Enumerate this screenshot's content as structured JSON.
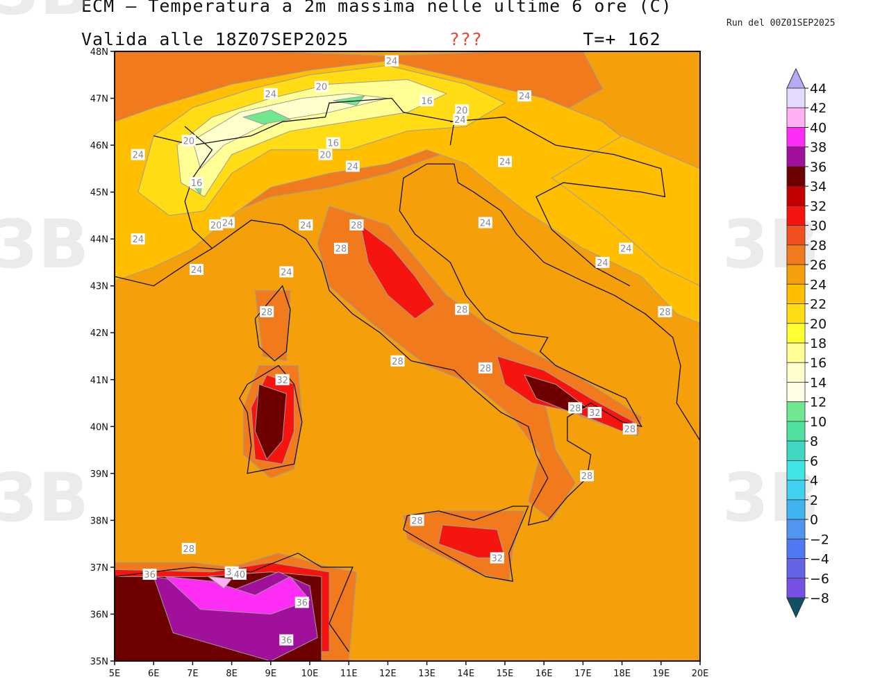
{
  "header": {
    "title": "ECM — Temperatura a 2m massima nelle ultime 6 ore (C)",
    "valid_prefix": "Valida alle 18Z07SEP2025",
    "warning": "???",
    "lead": "T=+ 162",
    "run": "Run del 00Z01SEP2025"
  },
  "map": {
    "lon_min": 5,
    "lon_max": 20,
    "lat_min": 35,
    "lat_max": 48,
    "lon_labels": [
      "5E",
      "6E",
      "7E",
      "8E",
      "9E",
      "10E",
      "11E",
      "12E",
      "13E",
      "14E",
      "15E",
      "16E",
      "17E",
      "18E",
      "19E",
      "20E"
    ],
    "lat_labels": [
      "35N",
      "36N",
      "37N",
      "38N",
      "39N",
      "40N",
      "41N",
      "42N",
      "43N",
      "44N",
      "45N",
      "46N",
      "47N",
      "48N"
    ],
    "contour_labels": [
      {
        "text": "24",
        "lon": 12.1,
        "lat": 47.8
      },
      {
        "text": "24",
        "lon": 9.0,
        "lat": 47.1
      },
      {
        "text": "20",
        "lon": 10.3,
        "lat": 47.25
      },
      {
        "text": "16",
        "lon": 13.0,
        "lat": 46.95
      },
      {
        "text": "24",
        "lon": 15.5,
        "lat": 47.05
      },
      {
        "text": "20",
        "lon": 13.9,
        "lat": 46.75
      },
      {
        "text": "24",
        "lon": 13.85,
        "lat": 46.55
      },
      {
        "text": "20",
        "lon": 6.9,
        "lat": 46.1
      },
      {
        "text": "16",
        "lon": 10.6,
        "lat": 46.05
      },
      {
        "text": "20",
        "lon": 10.4,
        "lat": 45.8
      },
      {
        "text": "24",
        "lon": 5.6,
        "lat": 45.8
      },
      {
        "text": "24",
        "lon": 11.1,
        "lat": 45.55
      },
      {
        "text": "24",
        "lon": 15.0,
        "lat": 45.65
      },
      {
        "text": "16",
        "lon": 7.1,
        "lat": 45.2
      },
      {
        "text": "20",
        "lon": 7.6,
        "lat": 44.3
      },
      {
        "text": "24",
        "lon": 7.9,
        "lat": 44.35
      },
      {
        "text": "24",
        "lon": 9.9,
        "lat": 44.3
      },
      {
        "text": "28",
        "lon": 11.2,
        "lat": 44.3
      },
      {
        "text": "24",
        "lon": 14.5,
        "lat": 44.35
      },
      {
        "text": "24",
        "lon": 5.6,
        "lat": 44.0
      },
      {
        "text": "28",
        "lon": 10.8,
        "lat": 43.8
      },
      {
        "text": "24",
        "lon": 18.1,
        "lat": 43.8
      },
      {
        "text": "24",
        "lon": 17.5,
        "lat": 43.5
      },
      {
        "text": "24",
        "lon": 7.1,
        "lat": 43.35
      },
      {
        "text": "24",
        "lon": 9.4,
        "lat": 43.3
      },
      {
        "text": "28",
        "lon": 13.9,
        "lat": 42.5
      },
      {
        "text": "28",
        "lon": 19.1,
        "lat": 42.45
      },
      {
        "text": "28",
        "lon": 8.9,
        "lat": 42.45
      },
      {
        "text": "28",
        "lon": 12.25,
        "lat": 41.4
      },
      {
        "text": "28",
        "lon": 14.5,
        "lat": 41.25
      },
      {
        "text": "32",
        "lon": 9.3,
        "lat": 41.0
      },
      {
        "text": "28",
        "lon": 16.8,
        "lat": 40.4
      },
      {
        "text": "32",
        "lon": 17.3,
        "lat": 40.3
      },
      {
        "text": "28",
        "lon": 18.2,
        "lat": 39.95
      },
      {
        "text": "28",
        "lon": 17.1,
        "lat": 38.95
      },
      {
        "text": "28",
        "lon": 12.75,
        "lat": 38.0
      },
      {
        "text": "32",
        "lon": 14.8,
        "lat": 37.2
      },
      {
        "text": "28",
        "lon": 6.9,
        "lat": 37.4
      },
      {
        "text": "36",
        "lon": 5.9,
        "lat": 36.85
      },
      {
        "text": "32",
        "lon": 8.0,
        "lat": 36.9
      },
      {
        "text": "40",
        "lon": 8.2,
        "lat": 36.85
      },
      {
        "text": "36",
        "lon": 9.8,
        "lat": 36.25
      },
      {
        "text": "36",
        "lon": 9.4,
        "lat": 35.45
      }
    ],
    "watermarks": [
      "3B",
      "3B",
      "3B",
      "3B",
      "3B",
      "3B",
      "3B"
    ]
  },
  "colorbar": {
    "levels": [
      44,
      42,
      40,
      38,
      36,
      34,
      32,
      30,
      28,
      26,
      24,
      22,
      20,
      18,
      16,
      14,
      12,
      10,
      8,
      6,
      4,
      2,
      0,
      -2,
      -4,
      -6,
      -8
    ],
    "labels": [
      "44",
      "42",
      "40",
      "38",
      "36",
      "34",
      "32",
      "30",
      "28",
      "26",
      "24",
      "22",
      "20",
      "18",
      "16",
      "14",
      "12",
      "10",
      "8",
      "6",
      "4",
      "2",
      "0",
      "−2",
      "−4",
      "−6",
      "−8"
    ],
    "colors": [
      "#e4d9ff",
      "#ffb0f5",
      "#ff2cf5",
      "#a0109a",
      "#6e0000",
      "#c40000",
      "#f5140e",
      "#f0501e",
      "#f07a1c",
      "#f5a00a",
      "#ffbe00",
      "#ffdc14",
      "#ffff32",
      "#ffff96",
      "#ffffcc",
      "#ffffe6",
      "#6fe890",
      "#50e0a0",
      "#40d8c0",
      "#40e6e6",
      "#40d0f0",
      "#40b4f0",
      "#5096f0",
      "#5078f0",
      "#6464e6",
      "#7850e6",
      "#8c46dc"
    ],
    "top_arrow_color": "#b4aaf5",
    "bottom_arrow_color": "#0f5064"
  }
}
